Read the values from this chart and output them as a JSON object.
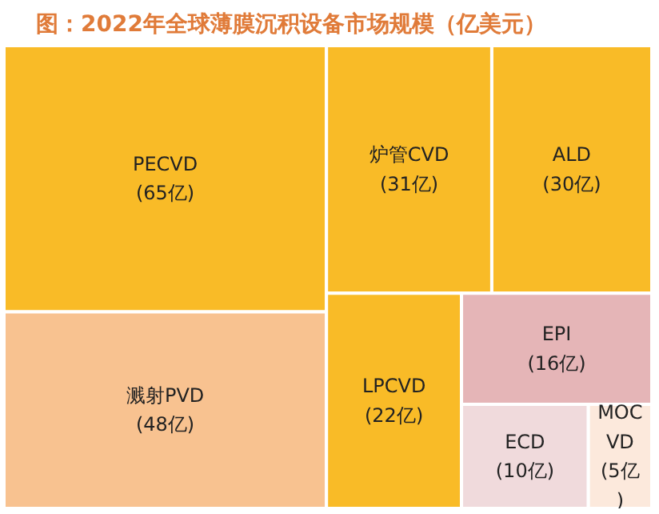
{
  "chart_data": {
    "type": "other",
    "title": "图：2022年全球薄膜沉积设备市场规模（亿美元）",
    "categories": [
      "PECVD",
      "溅射PVD",
      "炉管CVD",
      "ALD",
      "LPCVD",
      "EPI",
      "ECD",
      "MOCVD"
    ],
    "values": [
      65,
      48,
      31,
      30,
      22,
      16,
      10,
      5
    ],
    "value_labels": [
      "(65亿)",
      "(48亿)",
      "(31亿)",
      "(30亿)",
      "(22亿)",
      "(16亿)",
      "(10亿)",
      "(5亿)"
    ],
    "colors": [
      "#f9bb27",
      "#f8c290",
      "#f9bb27",
      "#f9bb27",
      "#f9bb27",
      "#e5b5b7",
      "#f0dadc",
      "#fce9dc"
    ]
  }
}
